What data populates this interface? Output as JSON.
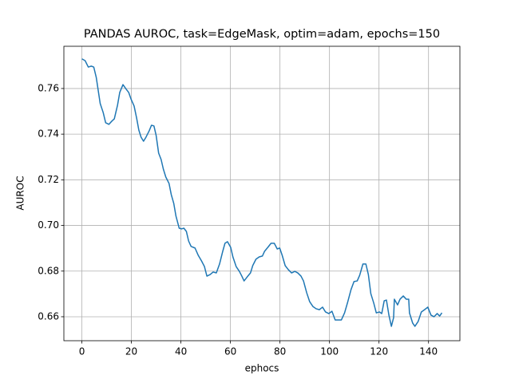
{
  "chart_data": {
    "type": "line",
    "title": "PANDAS AUROC, task=EdgeMask, optim=adam, epochs=150",
    "xlabel": "ephocs",
    "ylabel": "AUROC",
    "x": [
      0,
      1.3,
      2.6,
      3.8,
      4.8,
      5.8,
      7.4,
      8.6,
      9.6,
      10.9,
      12.1,
      13.1,
      14.4,
      15.3,
      16.6,
      17.9,
      18.9,
      19.8,
      21.1,
      22.1,
      23,
      23.9,
      24.9,
      25.9,
      27.2,
      28.1,
      29.1,
      30,
      31,
      32,
      32.9,
      33.9,
      35.2,
      36.1,
      37.1,
      38,
      39.3,
      40.3,
      41.2,
      42.2,
      43.1,
      44.1,
      45.7,
      47,
      48.3,
      49.5,
      50.5,
      51.8,
      53,
      54.3,
      55.6,
      56.9,
      57.8,
      58.8,
      60.1,
      61,
      62.3,
      63.6,
      64.6,
      65.5,
      66.8,
      68.1,
      69,
      70.3,
      71.6,
      72.9,
      73.8,
      75.1,
      76.4,
      77.7,
      78.9,
      79.9,
      80.9,
      82.1,
      83.4,
      84.7,
      86,
      87.2,
      88.5,
      89.5,
      90.8,
      92,
      93.3,
      94.6,
      95.9,
      97.2,
      98.4,
      99.7,
      101,
      102.3,
      103.5,
      104.8,
      106.1,
      107.4,
      108.7,
      109.9,
      111.2,
      112.2,
      113.5,
      114.7,
      115.7,
      116.7,
      117.9,
      118.9,
      120.2,
      121.1,
      122.1,
      123,
      124,
      125,
      125.9,
      126.2,
      127.5,
      128.5,
      129.8,
      131,
      132,
      132.3,
      133.6,
      134.5,
      135.8,
      137.1,
      138.4,
      139.7,
      141,
      142.2,
      143.5,
      144.5,
      145.4
    ],
    "series": [
      {
        "name": "AUROC",
        "color": "#1f77b4",
        "values": [
          0.773,
          0.7722,
          0.7694,
          0.7698,
          0.7694,
          0.7649,
          0.7534,
          0.7495,
          0.745,
          0.7443,
          0.7457,
          0.7467,
          0.7527,
          0.7583,
          0.7617,
          0.7597,
          0.7583,
          0.7555,
          0.7523,
          0.7471,
          0.7418,
          0.7387,
          0.7369,
          0.7387,
          0.7415,
          0.7439,
          0.7436,
          0.7394,
          0.7317,
          0.7289,
          0.7247,
          0.7212,
          0.7184,
          0.7135,
          0.7097,
          0.7041,
          0.6988,
          0.6985,
          0.6988,
          0.6974,
          0.6932,
          0.6908,
          0.6901,
          0.6869,
          0.6845,
          0.682,
          0.6778,
          0.6785,
          0.6796,
          0.6792,
          0.6831,
          0.6887,
          0.6922,
          0.6929,
          0.6904,
          0.6862,
          0.682,
          0.6799,
          0.6778,
          0.6757,
          0.6775,
          0.6792,
          0.6824,
          0.6852,
          0.6862,
          0.6866,
          0.6887,
          0.6904,
          0.6922,
          0.6922,
          0.6897,
          0.6901,
          0.6869,
          0.6824,
          0.6806,
          0.6792,
          0.6799,
          0.6792,
          0.6778,
          0.6757,
          0.6705,
          0.6666,
          0.6645,
          0.6635,
          0.6631,
          0.6642,
          0.6621,
          0.6614,
          0.6624,
          0.6586,
          0.6586,
          0.6586,
          0.6617,
          0.6666,
          0.6719,
          0.6754,
          0.6757,
          0.6782,
          0.6831,
          0.6831,
          0.6785,
          0.6701,
          0.6659,
          0.6617,
          0.6621,
          0.6614,
          0.667,
          0.6673,
          0.6607,
          0.6558,
          0.6596,
          0.6677,
          0.6652,
          0.6677,
          0.6691,
          0.6677,
          0.6677,
          0.6617,
          0.6572,
          0.6558,
          0.6579,
          0.6621,
          0.6631,
          0.6642,
          0.6607,
          0.66,
          0.6614,
          0.6603,
          0.6617
        ]
      }
    ],
    "xlim": [
      -7.27,
      152.67
    ],
    "xticks": [
      0,
      20,
      40,
      60,
      80,
      100,
      120,
      140
    ],
    "ylim": [
      0.6495,
      0.7785
    ],
    "yticks": [
      0.66,
      0.68,
      {
        "value": 0.7,
        "label": "0.70"
      },
      0.72,
      0.74,
      0.76
    ],
    "grid": true
  }
}
